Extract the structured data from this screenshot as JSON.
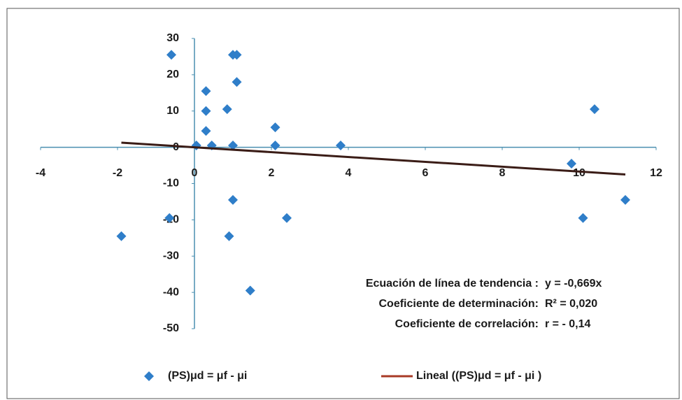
{
  "chart_data": {
    "type": "scatter",
    "series": [
      {
        "name": "(PS)μd = μf - μi",
        "color": "#2f7ec9",
        "marker": "diamond",
        "x": [
          -0.6,
          1.0,
          1.1,
          1.1,
          0.3,
          0.3,
          0.85,
          0.3,
          0.05,
          0.45,
          1.0,
          2.1,
          2.1,
          3.8,
          -0.65,
          1.0,
          -1.9,
          0.9,
          2.4,
          1.45,
          10.4,
          9.8,
          10.1,
          11.2
        ],
        "values": [
          25.5,
          25.5,
          25.5,
          18,
          15.5,
          10,
          10.5,
          4.5,
          0.5,
          0.5,
          0.5,
          5.5,
          0.5,
          0.5,
          -19.5,
          -14.5,
          -24.5,
          -24.5,
          -19.5,
          -39.5,
          10.5,
          -4.5,
          -19.5,
          -14.5
        ]
      },
      {
        "name": "Lineal ((PS)μd = μf - μi )",
        "color": "#3a1c16",
        "marker": "line",
        "x": [
          -1.9,
          11.2
        ],
        "values": [
          1.27,
          -7.49
        ]
      }
    ],
    "xlim": [
      -4,
      12
    ],
    "xticks": [
      -4,
      -2,
      0,
      2,
      4,
      6,
      8,
      10,
      12
    ],
    "ylim": [
      -50,
      30
    ],
    "yticks": [
      -50,
      -40,
      -30,
      -20,
      -10,
      0,
      10,
      20,
      30
    ],
    "annotations": [
      [
        "Ecuación de línea de tendencia :",
        "y = -0,669x"
      ],
      [
        "Coeficiente de determinación:",
        "R² = 0,020"
      ],
      [
        "Coeficiente de correlación:",
        "r =  - 0,14"
      ]
    ]
  }
}
